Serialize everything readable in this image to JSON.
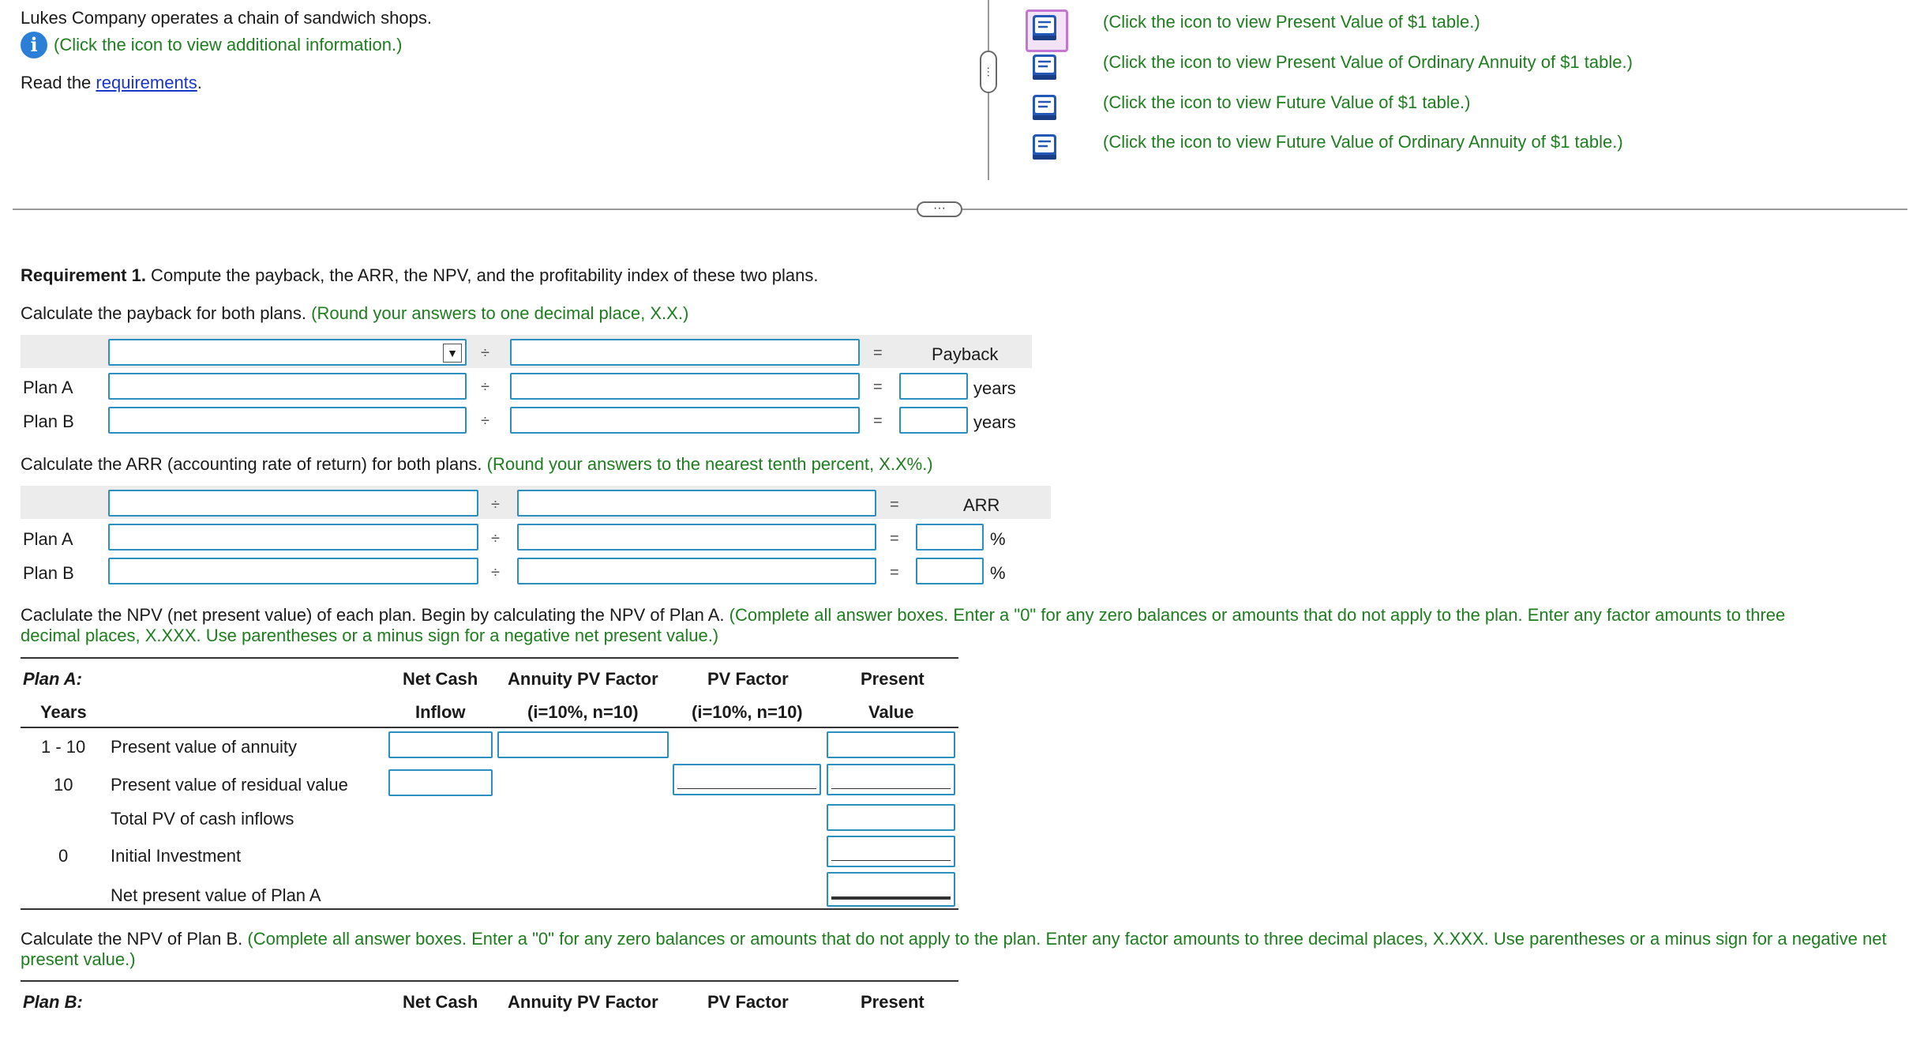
{
  "intro": {
    "company_text": "Lukes Company operates a chain of sandwich shops.",
    "info_link": "(Click the icon to view additional information.)",
    "read_prefix": "Read the ",
    "requirements_link": "requirements",
    "read_suffix": "."
  },
  "tables": [
    {
      "label": "(Click the icon to view Present Value of $1 table.)",
      "selected": true
    },
    {
      "label": "(Click the icon to view Present Value of Ordinary Annuity of $1 table.)"
    },
    {
      "label": "(Click the icon to view Future Value of $1 table.)"
    },
    {
      "label": "(Click the icon to view Future Value of Ordinary Annuity of $1 table.)"
    }
  ],
  "ellipsis": "···",
  "requirement": {
    "title_bold": "Requirement 1.",
    "title_rest": " Compute the payback, the ARR, the NPV, and the profitability index of these two plans."
  },
  "payback": {
    "instruction": "Calculate the payback for both plans.",
    "hint": "(Round your answers to one decimal place, X.X.)",
    "divide": "÷",
    "equals": "=",
    "result_header": "Payback",
    "rows": [
      {
        "label": "Plan A",
        "unit": "years"
      },
      {
        "label": "Plan B",
        "unit": "years"
      }
    ]
  },
  "arr": {
    "instruction": "Calculate the ARR (accounting rate of return) for both plans.",
    "hint": "(Round your answers to the nearest tenth percent, X.X%.)",
    "divide": "÷",
    "equals": "=",
    "result_header": "ARR",
    "rows": [
      {
        "label": "Plan A",
        "unit": "%"
      },
      {
        "label": "Plan B",
        "unit": "%"
      }
    ]
  },
  "npv_a": {
    "instruction": "Caclulate the NPV (net present value) of each plan. Begin by calculating the NPV of Plan A.",
    "hint_line1": "(Complete all answer boxes. Enter a \"0\" for any zero balances or amounts that do not apply to the plan. Enter any factor amounts to three",
    "hint_line2": "decimal places, X.XXX. Use parentheses or a minus sign for a negative net present value.)",
    "plan_label": "Plan A:",
    "col_years": "Years",
    "col_cash_1": "Net Cash",
    "col_cash_2": "Inflow",
    "col_annuity_1": "Annuity PV Factor",
    "col_annuity_2": "(i=10%, n=10)",
    "col_pv_1": "PV Factor",
    "col_pv_2": "(i=10%, n=10)",
    "col_present_1": "Present",
    "col_present_2": "Value",
    "rows": [
      {
        "years": "1 - 10",
        "label": "Present value of annuity"
      },
      {
        "years": "10",
        "label": "Present value of residual value"
      },
      {
        "years": "",
        "label": "Total PV of cash inflows"
      },
      {
        "years": "0",
        "label": "Initial Investment"
      },
      {
        "years": "",
        "label": "Net present value of Plan A"
      }
    ]
  },
  "npv_b": {
    "instruction": "Calculate the NPV of Plan B.",
    "hint_line1": "(Complete all answer boxes. Enter a \"0\" for any zero balances or amounts that do not apply to the plan. Enter any factor amounts to three decimal places, X.XXX. Use parentheses or a minus sign for a negative net",
    "hint_line2": "present value.)",
    "plan_label": "Plan B:",
    "col_cash_1": "Net Cash",
    "col_annuity_1": "Annuity PV Factor",
    "col_pv_1": "PV Factor",
    "col_present_1": "Present"
  },
  "colors": {
    "hint_green": "#1e7d1e",
    "link_blue": "#1a37c8",
    "input_border": "#2b8fbf",
    "info_icon": "#2c7fd6",
    "book_icon": "#2458b8",
    "selected_icon_border": "#c377d3"
  }
}
